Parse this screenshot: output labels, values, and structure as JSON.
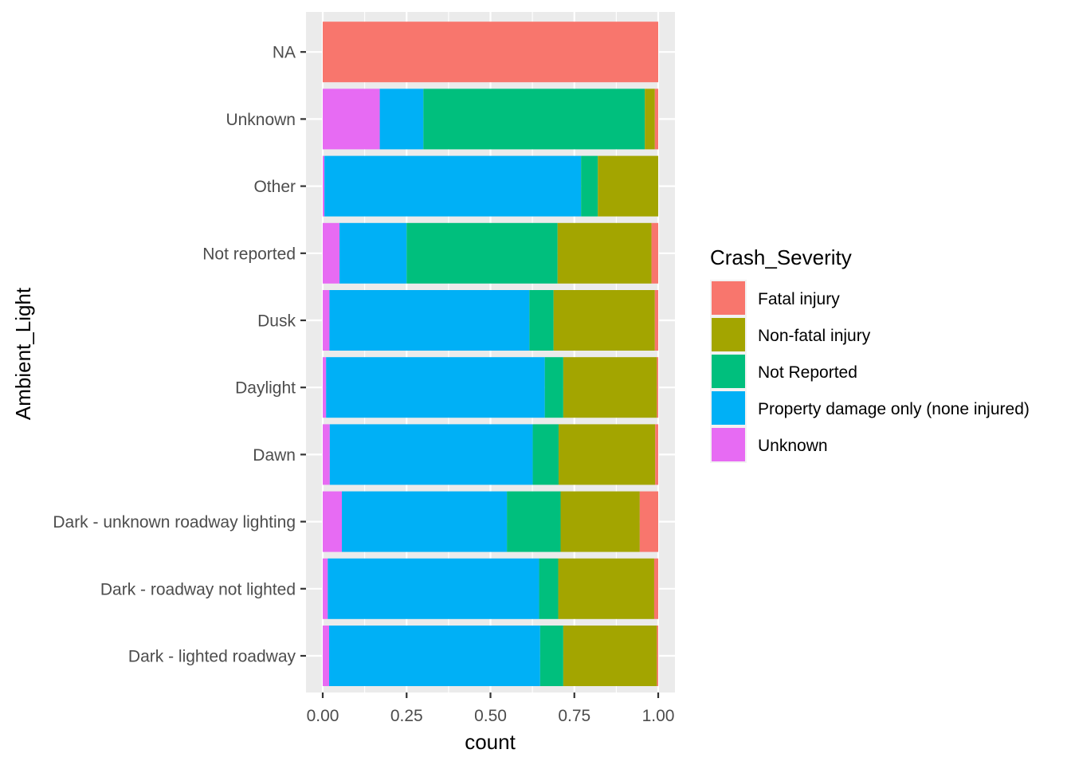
{
  "chart_data": {
    "type": "bar",
    "orientation": "horizontal",
    "stacked": "fill",
    "xlabel": "count",
    "ylabel": "Ambient_Light",
    "xlim": [
      0,
      1
    ],
    "x_ticks": [
      "0.00",
      "0.25",
      "0.50",
      "0.75",
      "1.00"
    ],
    "x_tick_values": [
      0,
      0.25,
      0.5,
      0.75,
      1.0
    ],
    "grid": true,
    "legend_position": "right",
    "legend_title": "Crash_Severity",
    "categories": [
      "Dark - lighted roadway",
      "Dark - roadway not lighted",
      "Dark - unknown roadway lighting",
      "Dawn",
      "Daylight",
      "Dusk",
      "Not reported",
      "Other",
      "Unknown",
      "NA"
    ],
    "stack_order_left_to_right": [
      "Unknown",
      "Property damage only (none injured)",
      "Not Reported",
      "Non-fatal injury",
      "Fatal injury"
    ],
    "series": [
      {
        "name": "Fatal injury",
        "color": "#F8766D",
        "values": [
          0.004,
          0.012,
          0.055,
          0.009,
          0.004,
          0.01,
          0.02,
          0.0,
          0.01,
          1.0
        ]
      },
      {
        "name": "Non-fatal injury",
        "color": "#A3A500",
        "values": [
          0.279,
          0.286,
          0.236,
          0.288,
          0.279,
          0.302,
          0.28,
          0.18,
          0.03,
          0.0
        ]
      },
      {
        "name": "Not Reported",
        "color": "#00BF7D",
        "values": [
          0.069,
          0.057,
          0.16,
          0.077,
          0.055,
          0.072,
          0.45,
          0.05,
          0.66,
          0.0
        ]
      },
      {
        "name": "Property damage only (none injured)",
        "color": "#00B0F6",
        "values": [
          0.629,
          0.63,
          0.492,
          0.605,
          0.652,
          0.596,
          0.2,
          0.765,
          0.13,
          0.0
        ]
      },
      {
        "name": "Unknown",
        "color": "#E76BF3",
        "values": [
          0.019,
          0.015,
          0.057,
          0.021,
          0.01,
          0.02,
          0.05,
          0.005,
          0.17,
          0.0
        ]
      }
    ]
  },
  "colors": {
    "panel_background": "#EBEBEB",
    "grid_major": "#FFFFFF",
    "tick_text": "#4D4D4D"
  }
}
